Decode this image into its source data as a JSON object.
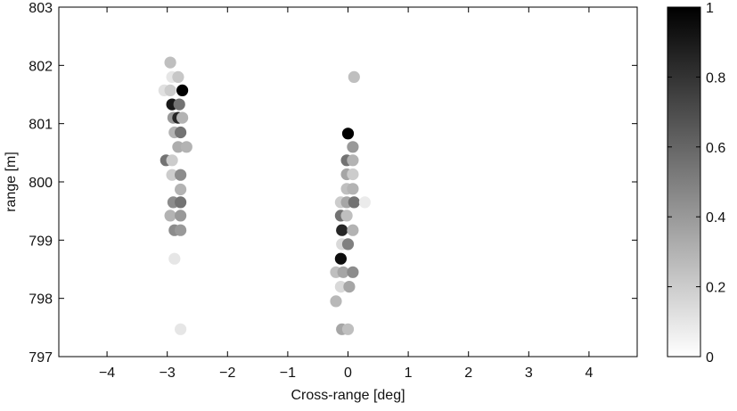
{
  "chart_data": {
    "type": "scatter",
    "title": "",
    "xlabel": "Cross-range [deg]",
    "ylabel": "range [m]",
    "xlim": [
      -4.8,
      4.8
    ],
    "ylim": [
      797,
      803
    ],
    "xticks": [
      -4,
      -3,
      -2,
      -1,
      0,
      1,
      2,
      3,
      4
    ],
    "xtick_labels": [
      "−4",
      "−3",
      "−2",
      "−1",
      "0",
      "1",
      "2",
      "3",
      "4"
    ],
    "yticks": [
      797,
      798,
      799,
      800,
      801,
      802,
      803
    ],
    "ytick_labels": [
      "797",
      "798",
      "799",
      "800",
      "801",
      "802",
      "803"
    ],
    "grid": false,
    "colormap": "gray (white = 0, black = 1)",
    "colorbar": {
      "range": [
        0,
        1
      ],
      "ticks": [
        0,
        0.2,
        0.4,
        0.6,
        0.8,
        1
      ],
      "tick_labels": [
        "0",
        "0.2",
        "0.4",
        "0.6",
        "0.8",
        "1"
      ],
      "color_low": "#ffffff",
      "color_high": "#000000"
    },
    "points": [
      {
        "x": -2.95,
        "y": 802.05,
        "v": 0.25
      },
      {
        "x": -2.92,
        "y": 801.8,
        "v": 0.1
      },
      {
        "x": -2.82,
        "y": 801.8,
        "v": 0.22
      },
      {
        "x": -3.05,
        "y": 801.57,
        "v": 0.12
      },
      {
        "x": -2.95,
        "y": 801.57,
        "v": 0.2
      },
      {
        "x": -2.75,
        "y": 801.57,
        "v": 1.0
      },
      {
        "x": -2.92,
        "y": 801.33,
        "v": 0.9
      },
      {
        "x": -2.8,
        "y": 801.33,
        "v": 0.55
      },
      {
        "x": -2.9,
        "y": 801.1,
        "v": 0.4
      },
      {
        "x": -2.82,
        "y": 801.1,
        "v": 0.85
      },
      {
        "x": -2.75,
        "y": 801.1,
        "v": 0.3
      },
      {
        "x": -2.88,
        "y": 800.85,
        "v": 0.3
      },
      {
        "x": -2.78,
        "y": 800.85,
        "v": 0.55
      },
      {
        "x": -2.82,
        "y": 800.6,
        "v": 0.32
      },
      {
        "x": -2.68,
        "y": 800.6,
        "v": 0.3
      },
      {
        "x": -3.02,
        "y": 800.37,
        "v": 0.55
      },
      {
        "x": -2.92,
        "y": 800.37,
        "v": 0.2
      },
      {
        "x": -2.92,
        "y": 800.12,
        "v": 0.2
      },
      {
        "x": -2.78,
        "y": 800.12,
        "v": 0.45
      },
      {
        "x": -2.78,
        "y": 799.87,
        "v": 0.3
      },
      {
        "x": -2.9,
        "y": 799.65,
        "v": 0.45
      },
      {
        "x": -2.78,
        "y": 799.65,
        "v": 0.55
      },
      {
        "x": -2.95,
        "y": 799.42,
        "v": 0.3
      },
      {
        "x": -2.78,
        "y": 799.42,
        "v": 0.4
      },
      {
        "x": -2.88,
        "y": 799.17,
        "v": 0.45
      },
      {
        "x": -2.78,
        "y": 799.17,
        "v": 0.4
      },
      {
        "x": -2.88,
        "y": 798.68,
        "v": 0.1
      },
      {
        "x": -2.78,
        "y": 797.47,
        "v": 0.1
      },
      {
        "x": 0.1,
        "y": 801.8,
        "v": 0.25
      },
      {
        "x": 0.0,
        "y": 800.83,
        "v": 1.0
      },
      {
        "x": 0.08,
        "y": 800.6,
        "v": 0.4
      },
      {
        "x": -0.02,
        "y": 800.37,
        "v": 0.55
      },
      {
        "x": 0.08,
        "y": 800.37,
        "v": 0.3
      },
      {
        "x": -0.02,
        "y": 800.13,
        "v": 0.35
      },
      {
        "x": 0.08,
        "y": 800.13,
        "v": 0.2
      },
      {
        "x": -0.02,
        "y": 799.88,
        "v": 0.25
      },
      {
        "x": 0.08,
        "y": 799.88,
        "v": 0.3
      },
      {
        "x": -0.12,
        "y": 799.65,
        "v": 0.2
      },
      {
        "x": -0.02,
        "y": 799.65,
        "v": 0.35
      },
      {
        "x": 0.1,
        "y": 799.65,
        "v": 0.55
      },
      {
        "x": 0.28,
        "y": 799.65,
        "v": 0.08
      },
      {
        "x": -0.12,
        "y": 799.42,
        "v": 0.55
      },
      {
        "x": -0.02,
        "y": 799.42,
        "v": 0.25
      },
      {
        "x": -0.1,
        "y": 799.17,
        "v": 0.85
      },
      {
        "x": 0.08,
        "y": 799.17,
        "v": 0.3
      },
      {
        "x": -0.1,
        "y": 798.93,
        "v": 0.15
      },
      {
        "x": 0.0,
        "y": 798.93,
        "v": 0.5
      },
      {
        "x": -0.12,
        "y": 798.68,
        "v": 0.95
      },
      {
        "x": -0.2,
        "y": 798.45,
        "v": 0.25
      },
      {
        "x": -0.08,
        "y": 798.45,
        "v": 0.35
      },
      {
        "x": 0.08,
        "y": 798.45,
        "v": 0.45
      },
      {
        "x": -0.12,
        "y": 798.2,
        "v": 0.15
      },
      {
        "x": 0.02,
        "y": 798.2,
        "v": 0.35
      },
      {
        "x": -0.2,
        "y": 797.95,
        "v": 0.28
      },
      {
        "x": -0.1,
        "y": 797.47,
        "v": 0.35
      },
      {
        "x": 0.0,
        "y": 797.47,
        "v": 0.25
      }
    ]
  }
}
